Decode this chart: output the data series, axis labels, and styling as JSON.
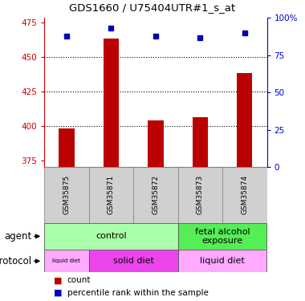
{
  "title": "GDS1660 / U75404UTR#1_s_at",
  "samples": [
    "GSM35875",
    "GSM35871",
    "GSM35872",
    "GSM35873",
    "GSM35874"
  ],
  "counts": [
    398,
    463,
    404,
    406,
    438
  ],
  "percentile_ranks": [
    88,
    93,
    88,
    87,
    90
  ],
  "ylim_left": [
    370,
    478
  ],
  "ylim_right": [
    0,
    100
  ],
  "yticks_left": [
    375,
    400,
    425,
    450,
    475
  ],
  "yticks_right": [
    0,
    25,
    50,
    75,
    100
  ],
  "bar_color": "#bb0000",
  "dot_color": "#0000bb",
  "agent_groups": [
    {
      "label": "control",
      "span": [
        0,
        3
      ],
      "color": "#aaffaa"
    },
    {
      "label": "fetal alcohol\nexposure",
      "span": [
        3,
        5
      ],
      "color": "#55ee55"
    }
  ],
  "protocol_groups": [
    {
      "label": "liquid diet",
      "span": [
        0,
        1
      ],
      "color": "#ffaaff",
      "fontsize": 5
    },
    {
      "label": "solid diet",
      "span": [
        1,
        3
      ],
      "color": "#ee44ee",
      "fontsize": 8
    },
    {
      "label": "liquid diet",
      "span": [
        3,
        5
      ],
      "color": "#ffaaff",
      "fontsize": 8
    }
  ],
  "grid_yticks": [
    400,
    425,
    450
  ],
  "left_axis_color": "#cc0000",
  "right_axis_color": "#0000cc"
}
